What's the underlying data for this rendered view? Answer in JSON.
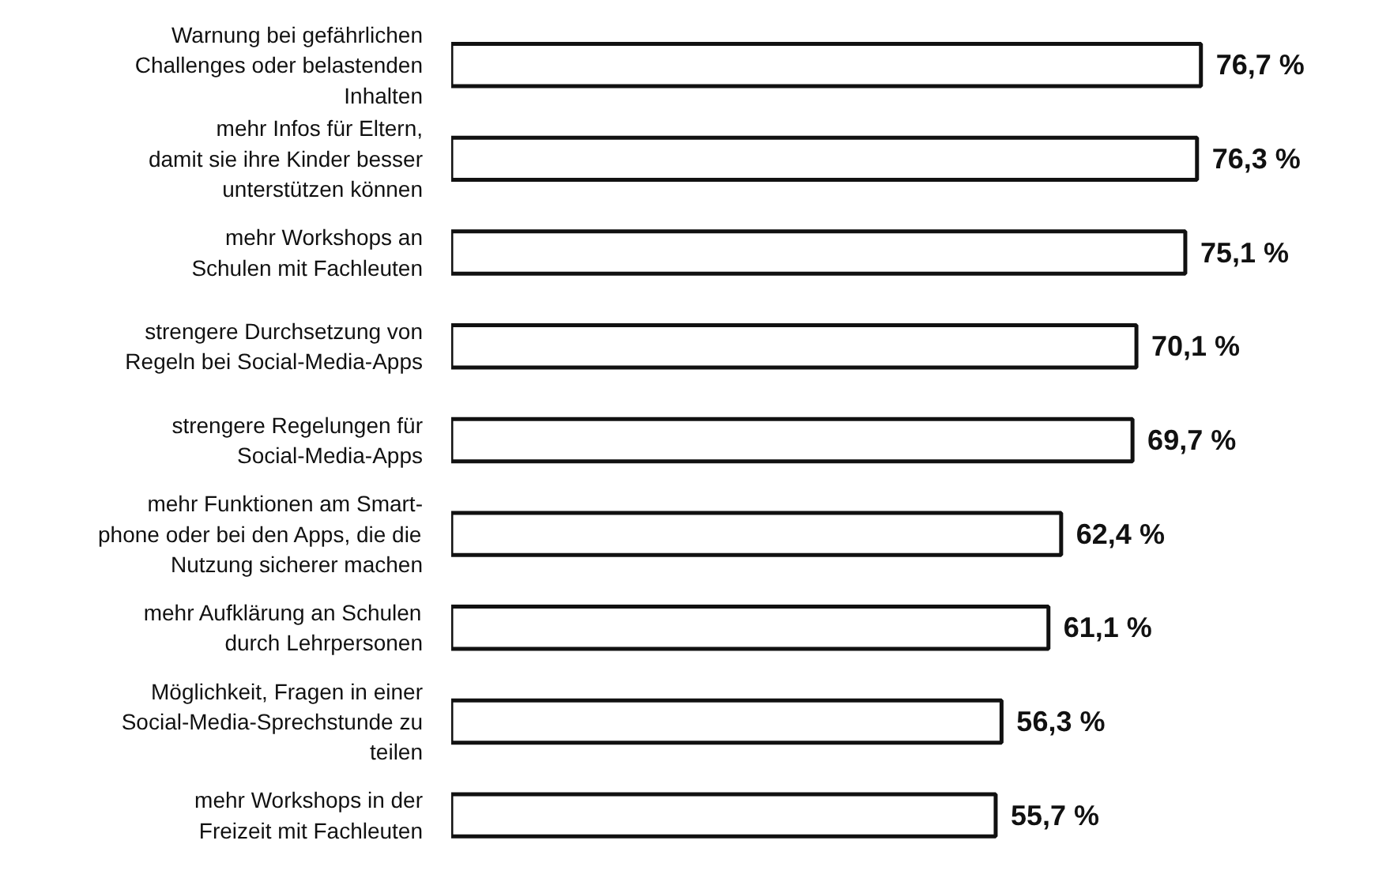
{
  "chart_data": {
    "type": "bar",
    "orientation": "horizontal",
    "data_labels": true,
    "grid": false,
    "categories": [
      "Warnung bei gefährlichen\nChallenges oder belastenden\nInhalten",
      "mehr Infos für Eltern,\ndamit sie ihre Kinder besser\nunterstützen können",
      "mehr Workshops an\nSchulen mit Fachleuten",
      "strengere Durchsetzung von\nRegeln bei Social-Media-Apps",
      "strengere Regelungen für\nSocial-Media-Apps",
      "mehr Funktionen am Smart-\nphone oder bei den Apps, die die\nNutzung sicherer machen",
      "mehr Aufklärung an Schulen\ndurch Lehrpersonen",
      "Möglichkeit, Fragen in einer\nSocial-Media-Sprechstunde zu\nteilen",
      "mehr Workshops in der\nFreizeit mit Fachleuten"
    ],
    "values": [
      76.7,
      76.3,
      75.1,
      70.1,
      69.7,
      62.4,
      61.1,
      56.3,
      55.7
    ],
    "value_labels": [
      "76,7 %",
      "76,3 %",
      "75,1 %",
      "70,1 %",
      "69,7 %",
      "62,4 %",
      "61,1 %",
      "56,3 %",
      "55,7 %"
    ],
    "color": "#ffffff"
  }
}
